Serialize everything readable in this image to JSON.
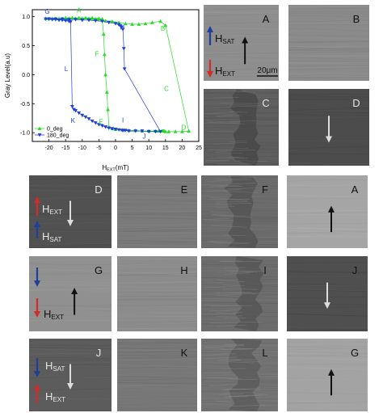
{
  "chart_data": {
    "type": "scatter",
    "xlabel": "H",
    "xlabel_sub": "EXT",
    "xlabel_unit": "(mT)",
    "ylabel": "Gray Level(a.u)",
    "xlim": [
      -25,
      25
    ],
    "ylim": [
      -1.15,
      1.12
    ],
    "xticks": [
      -20,
      -15,
      -10,
      -5,
      0,
      5,
      10,
      15,
      20,
      25
    ],
    "yticks": [
      -1.0,
      -0.5,
      0.0,
      0.5,
      1.0
    ],
    "xtick_labels": [
      "-20",
      "-15",
      "-10",
      "-5",
      "0",
      "5",
      "10",
      "15",
      "20",
      "25"
    ],
    "ytick_labels": [
      "-1.0",
      "-0.5",
      "0.0",
      "0.5",
      "1.0"
    ],
    "legend_position": "bottom-left",
    "series": [
      {
        "name": "0_deg",
        "color": "#22dd22",
        "marker": "triangle-up",
        "x": [
          -21,
          -19,
          -17,
          -15,
          -13,
          -11,
          -9,
          -7,
          -5,
          -4,
          -3.6,
          -3.3,
          -3,
          -2.6,
          -2.3,
          -2,
          -1,
          0,
          2,
          4,
          6,
          8,
          10,
          12,
          13,
          14,
          14.2,
          14.4,
          14.6,
          15,
          16,
          18,
          20,
          22,
          15,
          13.5,
          11,
          9,
          7,
          5,
          3,
          1,
          -1,
          -3,
          -4,
          -5,
          -6,
          -7,
          -8,
          -10,
          -12,
          -14,
          -16,
          -18,
          -20
        ],
        "y": [
          0.97,
          0.97,
          0.97,
          0.98,
          0.98,
          0.98,
          0.98,
          0.98,
          0.97,
          0.96,
          0.7,
          0.35,
          0.0,
          -0.3,
          -0.6,
          -0.9,
          -0.93,
          -0.94,
          -0.95,
          -0.96,
          -0.96,
          -0.97,
          -0.97,
          -0.97,
          -0.97,
          -0.97,
          -0.97,
          -0.97,
          -0.97,
          -0.98,
          -0.98,
          -0.98,
          -0.98,
          -0.97,
          0.85,
          0.92,
          0.9,
          0.88,
          0.87,
          0.87,
          0.88,
          0.9,
          0.92,
          0.93,
          0.95,
          0.96,
          0.96,
          0.97,
          0.97,
          0.97,
          0.97,
          0.97,
          0.97,
          0.97,
          0.97
        ]
      },
      {
        "name": "180_deg",
        "color": "#1f3fd8",
        "marker": "triangle-down",
        "x": [
          -21,
          -20,
          -19,
          -18,
          -17,
          -16,
          -15,
          -14,
          -13.5,
          -13,
          -12.5,
          -12,
          -11,
          -10,
          -9,
          -8,
          -7,
          -6,
          -5,
          -4,
          -3,
          -2,
          -1,
          0,
          1,
          2,
          2.5,
          3,
          4,
          6,
          8,
          10,
          12,
          13.5,
          2.7,
          2.5,
          2.2,
          1.8,
          1.5,
          1,
          0,
          -2,
          -4,
          -6,
          -8,
          -10,
          -12,
          -14,
          -16,
          -18,
          -20
        ],
        "y": [
          0.96,
          0.96,
          0.95,
          0.95,
          0.94,
          0.94,
          0.93,
          0.92,
          0.91,
          -0.55,
          -0.6,
          -0.62,
          -0.66,
          -0.7,
          -0.73,
          -0.76,
          -0.8,
          -0.83,
          -0.86,
          -0.88,
          -0.9,
          -0.92,
          -0.93,
          -0.94,
          -0.95,
          -0.96,
          -0.96,
          -0.96,
          -0.97,
          -0.97,
          -0.97,
          -0.98,
          -0.98,
          -0.98,
          0.1,
          0.45,
          0.78,
          0.82,
          0.84,
          0.86,
          0.88,
          0.9,
          0.92,
          0.93,
          0.94,
          0.94,
          0.95,
          0.95,
          0.96,
          0.96,
          0.96
        ]
      }
    ],
    "annotations": [
      {
        "text": "G",
        "x": -20.5,
        "y": 1.05,
        "color": "#1f3fd8"
      },
      {
        "text": "A",
        "x": -11,
        "y": 1.07,
        "color": "#22dd22"
      },
      {
        "text": "H",
        "x": 2,
        "y": 0.78,
        "color": "#1f3fd8"
      },
      {
        "text": "B",
        "x": 14.2,
        "y": 0.76,
        "color": "#22dd22"
      },
      {
        "text": "F",
        "x": -5.6,
        "y": 0.32,
        "color": "#22dd22"
      },
      {
        "text": "L",
        "x": -14.8,
        "y": 0.06,
        "color": "#1f3fd8"
      },
      {
        "text": "C",
        "x": 15.3,
        "y": -0.28,
        "color": "#22dd22"
      },
      {
        "text": "K",
        "x": -12.8,
        "y": -0.83,
        "color": "#1f3fd8"
      },
      {
        "text": "E",
        "x": -4.4,
        "y": -0.85,
        "color": "#22dd22"
      },
      {
        "text": "I",
        "x": 2.2,
        "y": -0.82,
        "color": "#1f3fd8"
      },
      {
        "text": "D",
        "x": 20.5,
        "y": -0.95,
        "color": "#22dd22"
      },
      {
        "text": "J",
        "x": 8.6,
        "y": -1.1,
        "color": "#1f3fd8"
      }
    ]
  },
  "colors": {
    "blue_arrow": "#1f3f9f",
    "red_arrow": "#d42a2a",
    "black_arrow": "#111111",
    "white_arrow": "#dddddd"
  },
  "labels": {
    "h": "H",
    "sat": "SAT",
    "ext": "EXT",
    "scale_bar": "20μm"
  },
  "panels": [
    {
      "label": "A",
      "label_color": "#111111",
      "bg": "#8e8e8e",
      "texture": "smooth",
      "arrows": [
        "black-up"
      ],
      "legend": "sat-ext",
      "scale_bar": true
    },
    {
      "label": "B",
      "label_color": "#111111",
      "bg": "#8a8a8a",
      "texture": "fine",
      "arrows": []
    },
    {
      "label": "C",
      "label_color": "#e6e6e6",
      "bg": "#5e5e5e",
      "texture": "domains",
      "arrows": []
    },
    {
      "label": "D",
      "label_color": "#e6e6e6",
      "bg": "#4c4c4c",
      "texture": "smooth",
      "arrows": [
        "white-down"
      ]
    },
    {
      "label": "D",
      "label_color": "#e6e6e6",
      "bg": "#515151",
      "texture": "smooth",
      "arrows": [
        "white-down"
      ],
      "legend": "ext-sat"
    },
    {
      "label": "E",
      "label_color": "#111111",
      "bg": "#7a7a7a",
      "texture": "fine",
      "arrows": []
    },
    {
      "label": "F",
      "label_color": "#111111",
      "bg": "#6a6a6a",
      "texture": "domains",
      "arrows": []
    },
    {
      "label": "A",
      "label_color": "#111111",
      "bg": "#a5a5a5",
      "texture": "smooth",
      "arrows": [
        "black-up"
      ]
    },
    {
      "label": "G",
      "label_color": "#111111",
      "bg": "#909090",
      "texture": "smooth",
      "arrows": [
        "black-up"
      ],
      "legend": "blue-ext"
    },
    {
      "label": "H",
      "label_color": "#111111",
      "bg": "#8b8b8b",
      "texture": "fine",
      "arrows": []
    },
    {
      "label": "I",
      "label_color": "#111111",
      "bg": "#6c6c6c",
      "texture": "domains",
      "arrows": []
    },
    {
      "label": "J",
      "label_color": "#111111",
      "bg": "#4f4f4f",
      "texture": "smooth",
      "arrows": [
        "white-down"
      ]
    },
    {
      "label": "J",
      "label_color": "#e6e6e6",
      "bg": "#5c5c5c",
      "texture": "smooth",
      "arrows": [
        "white-down"
      ],
      "legend": "sat-ext-red"
    },
    {
      "label": "K",
      "label_color": "#111111",
      "bg": "#777777",
      "texture": "fine",
      "arrows": []
    },
    {
      "label": "L",
      "label_color": "#111111",
      "bg": "#727272",
      "texture": "domains",
      "arrows": []
    },
    {
      "label": "G",
      "label_color": "#111111",
      "bg": "#a3a3a3",
      "texture": "smooth",
      "arrows": [
        "black-up"
      ]
    }
  ]
}
